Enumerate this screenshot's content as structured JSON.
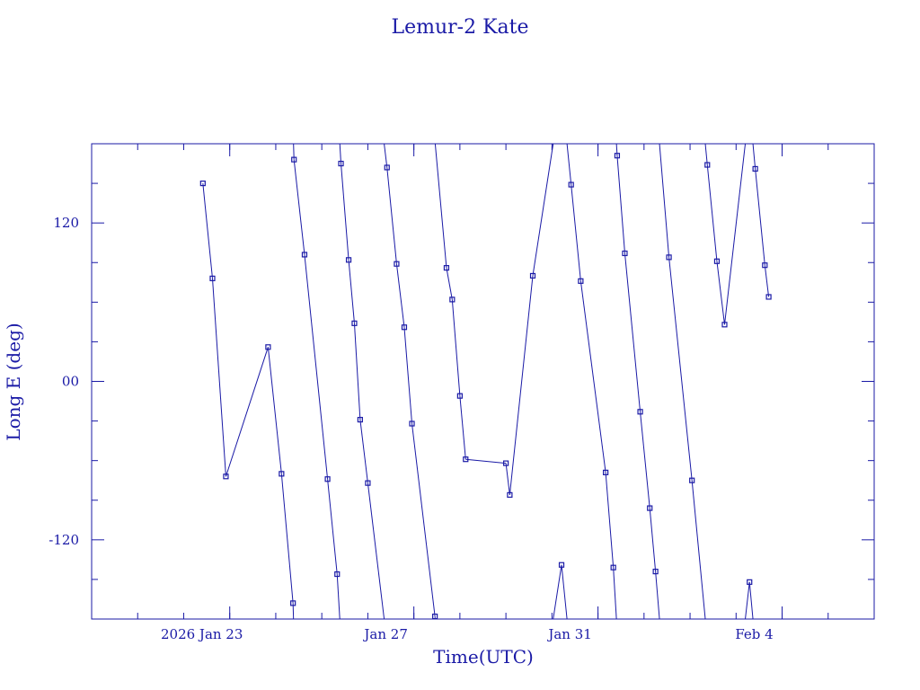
{
  "chart_data": {
    "type": "line",
    "title": "Lemur-2 Kate",
    "xlabel": "Time(UTC)",
    "ylabel": "Long E (deg)",
    "xlim_days_from_jan20_2026": [
      0,
      17
    ],
    "ylim": [
      -180,
      180
    ],
    "x_ticks": [
      {
        "label": "2026 Jan 23",
        "date": "2026-01-23"
      },
      {
        "label": "Jan 27",
        "date": "2026-01-27"
      },
      {
        "label": "Jan 31",
        "date": "2026-01-31"
      },
      {
        "label": "Feb  4",
        "date": "2026-02-04"
      }
    ],
    "y_ticks": [
      {
        "label": "120",
        "value": 120
      },
      {
        "label": "00",
        "value": 0
      },
      {
        "label": "-120",
        "value": -120
      }
    ],
    "grid": false,
    "colors": {
      "axis": "#1a1aa6",
      "series": "#1a1aa6",
      "background": "#ffffff"
    },
    "series": [
      {
        "points": [
          {
            "t": "2026-01-22T10:00",
            "y": 150
          },
          {
            "t": "2026-01-22T15:00",
            "y": 78
          },
          {
            "t": "2026-01-22T22:00",
            "y": -72
          },
          {
            "t": "2026-01-23T20:00",
            "y": 26
          },
          {
            "t": "2026-01-24T03:00",
            "y": -70
          },
          {
            "t": "2026-01-24T09:00",
            "y": -168
          },
          {
            "t": "2026-01-24T09:30",
            "y": 168
          },
          {
            "t": "2026-01-24T15:00",
            "y": 96
          },
          {
            "t": "2026-01-25T03:00",
            "y": -74
          },
          {
            "t": "2026-01-25T08:00",
            "y": -146
          },
          {
            "t": "2026-01-25T10:00",
            "y": 165
          },
          {
            "t": "2026-01-25T14:00",
            "y": 92
          },
          {
            "t": "2026-01-25T17:00",
            "y": 44
          },
          {
            "t": "2026-01-25T20:00",
            "y": -29
          },
          {
            "t": "2026-01-26T00:00",
            "y": -77
          },
          {
            "t": "2026-01-26T10:00",
            "y": 162
          },
          {
            "t": "2026-01-26T15:00",
            "y": 89
          },
          {
            "t": "2026-01-26T19:00",
            "y": 41
          },
          {
            "t": "2026-01-26T23:00",
            "y": -32
          },
          {
            "t": "2026-01-27T11:00",
            "y": -178
          },
          {
            "t": "2026-01-27T17:00",
            "y": 86
          },
          {
            "t": "2026-01-27T20:00",
            "y": 62
          },
          {
            "t": "2026-01-28T00:00",
            "y": -11
          },
          {
            "t": "2026-01-28T03:00",
            "y": -59
          },
          {
            "t": "2026-01-29T00:00",
            "y": -62
          },
          {
            "t": "2026-01-29T02:00",
            "y": -86
          },
          {
            "t": "2026-01-29T14:00",
            "y": 80
          },
          {
            "t": "2026-01-30T05:00",
            "y": -139
          },
          {
            "t": "2026-01-30T10:00",
            "y": 149
          },
          {
            "t": "2026-01-30T15:00",
            "y": 76
          },
          {
            "t": "2026-01-31T04:00",
            "y": -69
          },
          {
            "t": "2026-01-31T08:00",
            "y": -141
          },
          {
            "t": "2026-01-31T10:00",
            "y": 171
          },
          {
            "t": "2026-01-31T14:00",
            "y": 97
          },
          {
            "t": "2026-01-31T22:00",
            "y": -23
          },
          {
            "t": "2026-02-01T03:00",
            "y": -96
          },
          {
            "t": "2026-02-01T06:00",
            "y": -144
          },
          {
            "t": "2026-02-01T13:00",
            "y": 94
          },
          {
            "t": "2026-02-02T01:00",
            "y": -75
          },
          {
            "t": "2026-02-02T09:00",
            "y": 164
          },
          {
            "t": "2026-02-02T14:00",
            "y": 91
          },
          {
            "t": "2026-02-02T18:00",
            "y": 43
          },
          {
            "t": "2026-02-03T07:00",
            "y": -152
          },
          {
            "t": "2026-02-03T10:00",
            "y": 161
          },
          {
            "t": "2026-02-03T15:00",
            "y": 88
          },
          {
            "t": "2026-02-03T17:00",
            "y": 64
          }
        ]
      }
    ]
  }
}
